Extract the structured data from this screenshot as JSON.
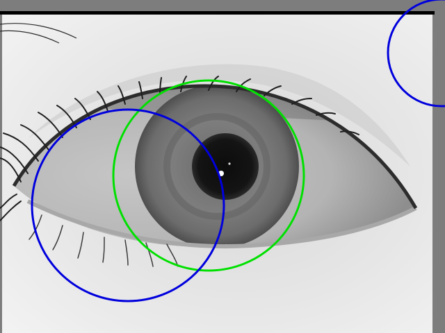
{
  "image": {
    "subject": "eye",
    "mode": "grayscale"
  },
  "overlays": {
    "iris_circle_color": "#00e000",
    "candidate_circle_color": "#0000dd",
    "top_bar_color": "#000000",
    "frame_border_color": "#7d7d7d"
  }
}
